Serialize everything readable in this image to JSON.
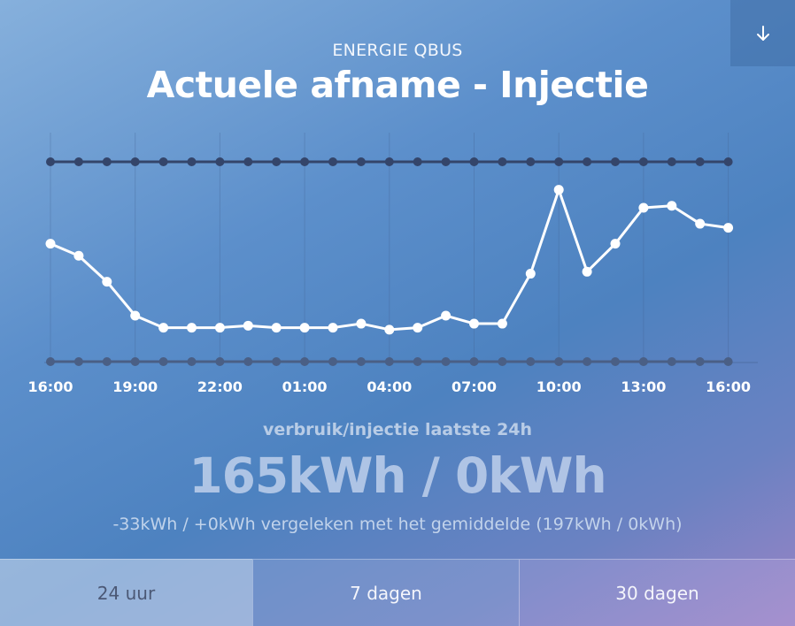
{
  "header": {
    "subtitle": "ENERGIE QBUS",
    "title": "Actuele afname - Injectie",
    "download_icon": "arrow-down-icon"
  },
  "chart_data": {
    "type": "line",
    "x": [
      "16:00",
      "17:00",
      "18:00",
      "19:00",
      "20:00",
      "21:00",
      "22:00",
      "23:00",
      "00:00",
      "01:00",
      "02:00",
      "03:00",
      "04:00",
      "05:00",
      "06:00",
      "07:00",
      "08:00",
      "09:00",
      "10:00",
      "11:00",
      "12:00",
      "13:00",
      "14:00",
      "15:00",
      "16:00"
    ],
    "tick_labels": [
      "16:00",
      "19:00",
      "22:00",
      "01:00",
      "04:00",
      "07:00",
      "10:00",
      "13:00",
      "16:00"
    ],
    "series": [
      {
        "color": "#ffffff",
        "values": [
          0.59,
          0.53,
          0.4,
          0.23,
          0.17,
          0.17,
          0.17,
          0.18,
          0.17,
          0.17,
          0.17,
          0.19,
          0.16,
          0.17,
          0.23,
          0.19,
          0.19,
          0.44,
          0.86,
          0.45,
          0.59,
          0.77,
          0.78,
          0.69,
          0.67
        ]
      },
      {
        "color": "#34456a",
        "values": [
          1,
          1,
          1,
          1,
          1,
          1,
          1,
          1,
          1,
          1,
          1,
          1,
          1,
          1,
          1,
          1,
          1,
          1,
          1,
          1,
          1,
          1,
          1,
          1,
          1
        ]
      },
      {
        "color": "#4a5f85",
        "values": [
          0,
          0,
          0,
          0,
          0,
          0,
          0,
          0,
          0,
          0,
          0,
          0,
          0,
          0,
          0,
          0,
          0,
          0,
          0,
          0,
          0,
          0,
          0,
          0,
          0
        ]
      }
    ],
    "ylim": [
      0,
      1
    ],
    "grid": true
  },
  "stats": {
    "label": "verbruik/injectie laatste 24h",
    "value": "165kWh / 0kWh",
    "compare": "-33kWh / +0kWh vergeleken met het gemiddelde (197kWh / 0kWh)"
  },
  "tabs": [
    {
      "label": "24 uur",
      "active": true
    },
    {
      "label": "7 dagen",
      "active": false
    },
    {
      "label": "30 dagen",
      "active": false
    }
  ]
}
